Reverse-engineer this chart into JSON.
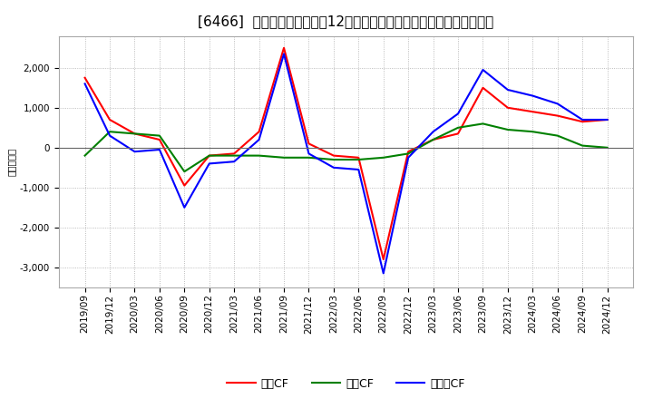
{
  "title": "[6466]  キャッシュフローの12か月移動合計の対前年同期増減額の推移",
  "ylabel": "（百万円）",
  "x_labels": [
    "2019/09",
    "2019/12",
    "2020/03",
    "2020/06",
    "2020/09",
    "2020/12",
    "2021/03",
    "2021/06",
    "2021/09",
    "2021/12",
    "2022/03",
    "2022/06",
    "2022/09",
    "2022/12",
    "2023/03",
    "2023/06",
    "2023/09",
    "2023/12",
    "2024/03",
    "2024/06",
    "2024/09",
    "2024/12"
  ],
  "legend_labels": [
    "営業CF",
    "投資CF",
    "フリーCF"
  ],
  "operating_cf": [
    1750,
    700,
    350,
    200,
    -950,
    -200,
    -150,
    400,
    2500,
    100,
    -200,
    -250,
    -2800,
    -100,
    200,
    350,
    1500,
    1000,
    900,
    800,
    650,
    700
  ],
  "investing_cf": [
    -200,
    400,
    350,
    300,
    -600,
    -200,
    -200,
    -200,
    -250,
    -250,
    -300,
    -300,
    -250,
    -150,
    200,
    500,
    600,
    450,
    400,
    300,
    50,
    0
  ],
  "free_cf": [
    1600,
    300,
    -100,
    -50,
    -1500,
    -400,
    -350,
    200,
    2350,
    -150,
    -500,
    -550,
    -3150,
    -250,
    400,
    850,
    1950,
    1450,
    1300,
    1100,
    700,
    700
  ],
  "operating_color": "#ff0000",
  "investing_color": "#008000",
  "free_color": "#0000ff",
  "bg_color": "#ffffff",
  "plot_bg_color": "#ffffff",
  "grid_color": "#aaaaaa",
  "ylim": [
    -3500,
    2800
  ],
  "yticks": [
    -3000,
    -2000,
    -1000,
    0,
    1000,
    2000
  ],
  "title_fontsize": 11,
  "label_fontsize": 7.5,
  "legend_fontsize": 9
}
